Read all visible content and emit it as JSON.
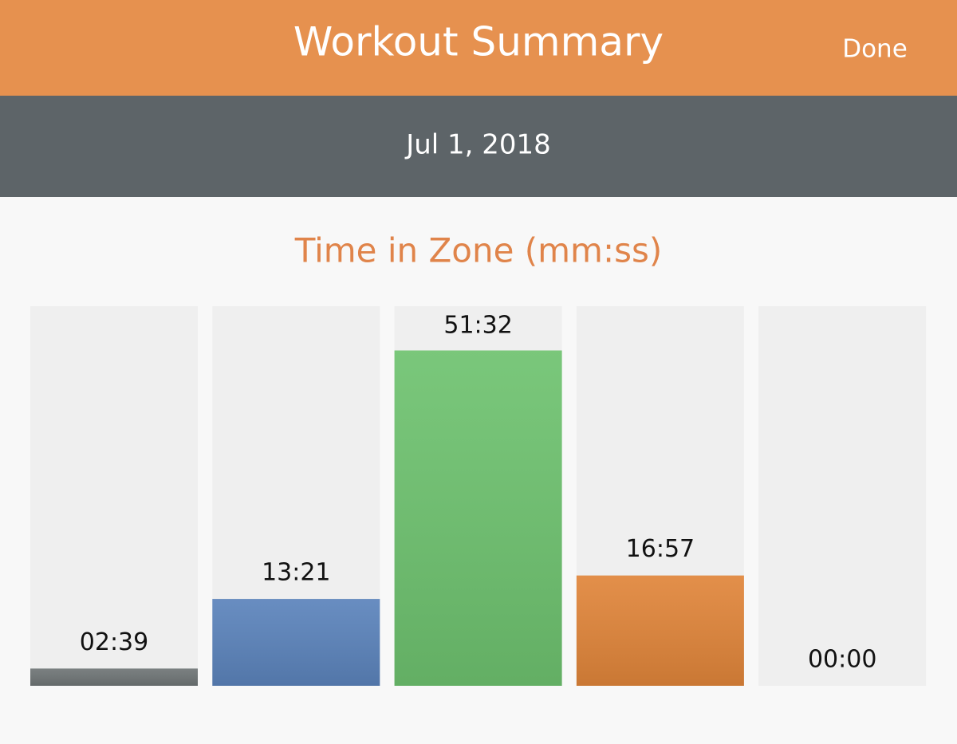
{
  "header": {
    "title": "Workout Summary",
    "done": "Done"
  },
  "date": "Jul 1, 2018",
  "chart_data": {
    "type": "bar",
    "title": "Time in Zone (mm:ss)",
    "values": [
      159,
      801,
      3092,
      1017,
      0
    ],
    "value_labels": [
      "02:39",
      "13:21",
      "51:32",
      "16:57",
      "00:00"
    ],
    "colors": [
      "#6f7576",
      "#5b83bb",
      "#6ec26f",
      "#e0853a",
      "#9a9a9a"
    ],
    "ylim": [
      0,
      3500
    ]
  }
}
